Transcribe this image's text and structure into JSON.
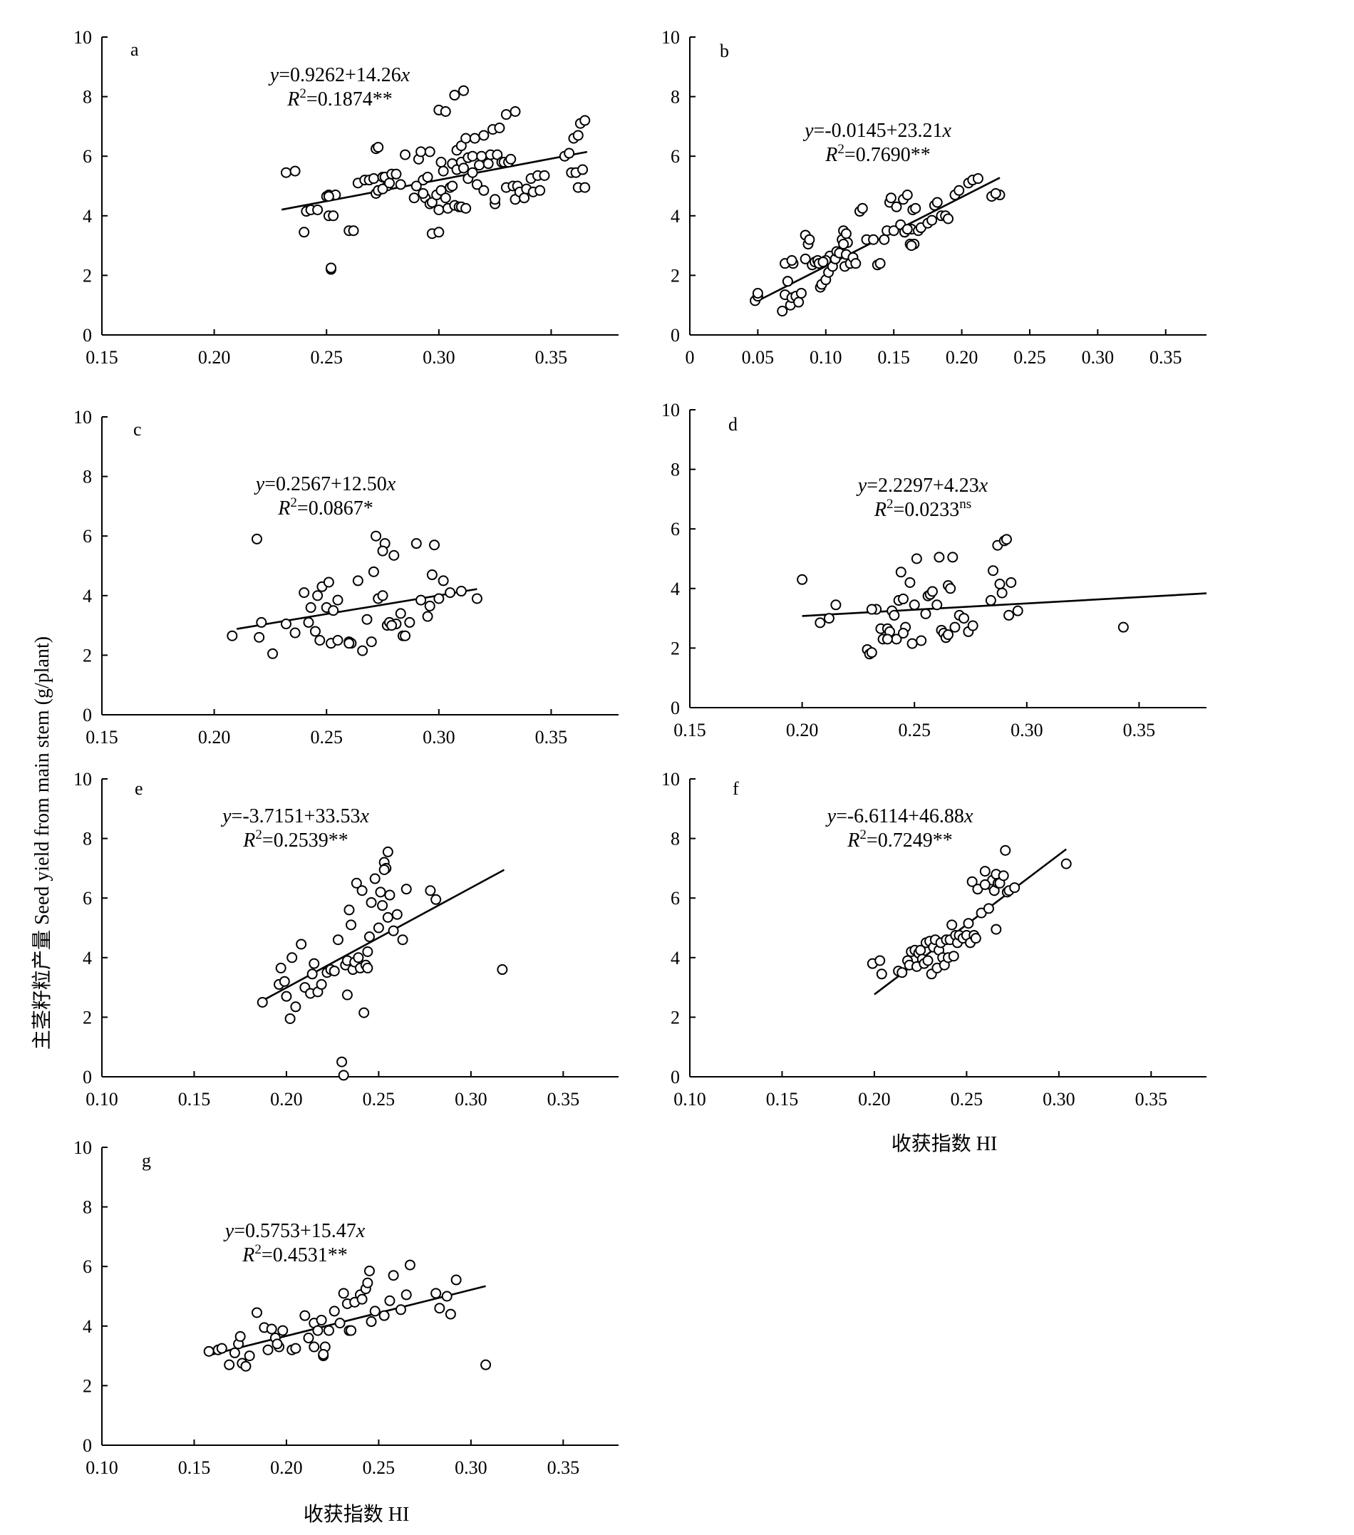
{
  "figure": {
    "ylabel": "主茎籽粒产量 Seed yield from main stem (g/plant)",
    "xlabel_upper": "收获指数 HI",
    "xlabel_lower": "收获指数 HI"
  },
  "chart_data": [
    {
      "type": "scatter",
      "letter": "a",
      "eq_line1": {
        "y": "y",
        "rest": "=0.9262+14.26",
        "x": "x"
      },
      "eq_line2": {
        "r": "R",
        "sup": "2",
        "rest": "=0.1874**"
      },
      "xlim": [
        0.15,
        0.38
      ],
      "ylim": [
        0,
        10
      ],
      "xticks": [
        "0.15",
        "0.20",
        "0.25",
        "0.30",
        "0.35"
      ],
      "yticks": [
        "0",
        "2",
        "4",
        "6",
        "8",
        "10"
      ],
      "fit": {
        "intercept": 0.9262,
        "slope": 14.26,
        "x_range": [
          0.23,
          0.366
        ]
      },
      "x": [
        0.232,
        0.236,
        0.24,
        0.241,
        0.243,
        0.246,
        0.25,
        0.251,
        0.251,
        0.252,
        0.253,
        0.252,
        0.254,
        0.251,
        0.26,
        0.262,
        0.264,
        0.267,
        0.269,
        0.271,
        0.272,
        0.273,
        0.275,
        0.276,
        0.277,
        0.279,
        0.281,
        0.272,
        0.273,
        0.275,
        0.278,
        0.283,
        0.285,
        0.289,
        0.291,
        0.292,
        0.293,
        0.294,
        0.295,
        0.296,
        0.296,
        0.297,
        0.299,
        0.3,
        0.301,
        0.301,
        0.302,
        0.303,
        0.304,
        0.305,
        0.306,
        0.306,
        0.307,
        0.308,
        0.308,
        0.309,
        0.31,
        0.31,
        0.311,
        0.312,
        0.313,
        0.313,
        0.315,
        0.315,
        0.316,
        0.317,
        0.318,
        0.319,
        0.32,
        0.322,
        0.323,
        0.324,
        0.325,
        0.326,
        0.327,
        0.328,
        0.329,
        0.33,
        0.331,
        0.332,
        0.333,
        0.334,
        0.335,
        0.336,
        0.338,
        0.339,
        0.341,
        0.342,
        0.344,
        0.345,
        0.347,
        0.307,
        0.311,
        0.297,
        0.3,
        0.29,
        0.293,
        0.3,
        0.303,
        0.31,
        0.312,
        0.32,
        0.325,
        0.33,
        0.334,
        0.356,
        0.358,
        0.36,
        0.362,
        0.363,
        0.365,
        0.359,
        0.361,
        0.362,
        0.365,
        0.364
      ],
      "y": [
        5.45,
        5.5,
        3.45,
        4.15,
        4.2,
        4.2,
        4.65,
        4.7,
        4.0,
        2.2,
        4.0,
        2.25,
        4.7,
        4.65,
        3.5,
        3.5,
        5.1,
        5.2,
        5.2,
        5.25,
        4.75,
        4.85,
        5.3,
        5.3,
        5.0,
        5.4,
        5.4,
        6.25,
        6.3,
        4.9,
        5.1,
        5.05,
        6.05,
        4.6,
        5.9,
        6.15,
        5.2,
        4.6,
        5.3,
        4.4,
        6.15,
        4.45,
        4.7,
        4.2,
        4.85,
        5.8,
        5.5,
        4.6,
        4.25,
        4.95,
        5.0,
        5.75,
        4.35,
        6.2,
        5.55,
        4.3,
        5.8,
        6.35,
        5.6,
        6.6,
        5.95,
        5.25,
        6.0,
        5.45,
        6.6,
        5.05,
        5.7,
        6.0,
        4.85,
        5.75,
        6.05,
        6.9,
        4.4,
        6.05,
        6.95,
        5.8,
        5.8,
        4.95,
        5.8,
        5.9,
        5.0,
        4.55,
        5.0,
        4.8,
        4.6,
        4.9,
        5.25,
        4.8,
        5.35,
        4.85,
        5.35,
        8.05,
        8.2,
        3.4,
        3.45,
        5.0,
        4.75,
        7.55,
        7.5,
        4.3,
        4.25,
        6.7,
        4.55,
        7.4,
        7.5,
        6.0,
        6.1,
        6.6,
        6.7,
        7.1,
        7.2,
        5.45,
        5.45,
        4.95,
        4.95,
        5.55
      ]
    },
    {
      "type": "scatter",
      "letter": "b",
      "eq_line1": {
        "y": "y",
        "rest": "=-0.0145+23.21",
        "x": "x"
      },
      "eq_line2": {
        "r": "R",
        "sup": "2",
        "rest": "=0.7690**"
      },
      "xlim": [
        0,
        0.38
      ],
      "ylim": [
        0,
        10
      ],
      "xticks": [
        "0",
        "0.05",
        "0.10",
        "0.15",
        "0.20",
        "0.25",
        "0.30",
        "0.35"
      ],
      "yticks": [
        "0",
        "2",
        "4",
        "6",
        "8",
        "10"
      ],
      "fit": {
        "intercept": -0.0145,
        "slope": 23.21,
        "x_range": [
          0.05,
          0.228
        ]
      },
      "x": [
        0.048,
        0.05,
        0.05,
        0.068,
        0.07,
        0.072,
        0.074,
        0.075,
        0.076,
        0.078,
        0.08,
        0.082,
        0.07,
        0.072,
        0.075,
        0.085,
        0.087,
        0.085,
        0.088,
        0.09,
        0.092,
        0.094,
        0.095,
        0.096,
        0.097,
        0.1,
        0.102,
        0.103,
        0.105,
        0.107,
        0.108,
        0.11,
        0.112,
        0.113,
        0.114,
        0.115,
        0.116,
        0.118,
        0.12,
        0.122,
        0.125,
        0.127,
        0.13,
        0.135,
        0.138,
        0.14,
        0.143,
        0.145,
        0.147,
        0.148,
        0.15,
        0.152,
        0.155,
        0.157,
        0.158,
        0.16,
        0.162,
        0.163,
        0.164,
        0.166,
        0.168,
        0.17,
        0.175,
        0.178,
        0.18,
        0.182,
        0.185,
        0.188,
        0.19,
        0.195,
        0.198,
        0.205,
        0.208,
        0.212,
        0.222,
        0.228,
        0.225,
        0.113,
        0.115,
        0.1,
        0.098,
        0.165,
        0.163,
        0.158,
        0.16
      ],
      "y": [
        1.15,
        1.3,
        1.4,
        0.8,
        1.35,
        1.8,
        1.0,
        1.25,
        2.4,
        1.3,
        1.1,
        1.4,
        2.4,
        1.8,
        2.5,
        2.55,
        3.05,
        3.35,
        3.2,
        2.35,
        2.45,
        2.5,
        2.4,
        1.6,
        1.7,
        1.85,
        2.1,
        2.65,
        2.3,
        2.55,
        2.8,
        2.75,
        3.2,
        3.5,
        2.3,
        2.7,
        3.1,
        2.4,
        2.6,
        2.4,
        4.15,
        4.25,
        3.2,
        3.2,
        2.35,
        2.4,
        3.2,
        3.5,
        4.45,
        4.6,
        3.5,
        4.3,
        3.7,
        4.55,
        3.45,
        4.7,
        3.05,
        3.55,
        4.2,
        4.25,
        3.5,
        3.6,
        3.75,
        3.85,
        4.35,
        4.45,
        4.0,
        4.0,
        3.9,
        4.7,
        4.85,
        5.1,
        5.2,
        5.25,
        4.65,
        4.7,
        4.75,
        3.05,
        3.4,
        2.5,
        2.45,
        3.05,
        3.0,
        3.45,
        3.55
      ]
    },
    {
      "type": "scatter",
      "letter": "c",
      "eq_line1": {
        "y": "y",
        "rest": "=0.2567+12.50",
        "x": "x"
      },
      "eq_line2": {
        "r": "R",
        "sup": "2",
        "rest": "=0.0867*"
      },
      "xlim": [
        0.15,
        0.38
      ],
      "ylim": [
        0,
        10
      ],
      "xticks": [
        "0.15",
        "0.20",
        "0.25",
        "0.30",
        "0.35"
      ],
      "yticks": [
        "0",
        "2",
        "4",
        "6",
        "8",
        "10"
      ],
      "fit": {
        "intercept": 0.2567,
        "slope": 12.5,
        "x_range": [
          0.21,
          0.317
        ]
      },
      "x": [
        0.208,
        0.219,
        0.22,
        0.221,
        0.226,
        0.232,
        0.236,
        0.24,
        0.242,
        0.243,
        0.245,
        0.246,
        0.247,
        0.248,
        0.25,
        0.251,
        0.252,
        0.253,
        0.255,
        0.255,
        0.26,
        0.261,
        0.264,
        0.266,
        0.268,
        0.27,
        0.271,
        0.272,
        0.273,
        0.275,
        0.276,
        0.277,
        0.278,
        0.28,
        0.281,
        0.283,
        0.284,
        0.285,
        0.287,
        0.29,
        0.292,
        0.295,
        0.296,
        0.297,
        0.298,
        0.3,
        0.302,
        0.305,
        0.31,
        0.317,
        0.275,
        0.279,
        0.26
      ],
      "y": [
        2.65,
        5.9,
        2.6,
        3.1,
        2.05,
        3.05,
        2.75,
        4.1,
        3.1,
        3.6,
        2.8,
        4.0,
        2.5,
        4.3,
        3.6,
        4.45,
        2.4,
        3.5,
        3.85,
        2.5,
        2.45,
        2.4,
        4.5,
        2.15,
        3.2,
        2.45,
        4.8,
        6.0,
        3.9,
        4.0,
        5.75,
        3.0,
        3.1,
        5.35,
        3.05,
        3.4,
        2.65,
        2.65,
        3.1,
        5.75,
        3.85,
        3.3,
        3.65,
        4.7,
        5.7,
        3.9,
        4.5,
        4.1,
        4.15,
        3.9,
        5.5,
        3.0,
        2.4
      ]
    },
    {
      "type": "scatter",
      "letter": "d",
      "eq_line1": {
        "y": "y",
        "rest": "=2.2297+4.23",
        "x": "x"
      },
      "eq_line2": {
        "r": "R",
        "sup": "2",
        "rest": "=0.0233",
        "sup2": "ns"
      },
      "xlim": [
        0.15,
        0.38
      ],
      "ylim": [
        0,
        10
      ],
      "xticks": [
        "0.15",
        "0.20",
        "0.25",
        "0.30",
        "0.35"
      ],
      "yticks": [
        "0",
        "2",
        "4",
        "6",
        "8",
        "10"
      ],
      "fit": {
        "intercept": 2.2297,
        "slope": 4.23,
        "x_range": [
          0.2,
          0.38
        ]
      },
      "x": [
        0.2,
        0.208,
        0.212,
        0.215,
        0.229,
        0.23,
        0.231,
        0.233,
        0.235,
        0.236,
        0.238,
        0.239,
        0.24,
        0.241,
        0.242,
        0.243,
        0.244,
        0.245,
        0.246,
        0.248,
        0.249,
        0.25,
        0.251,
        0.253,
        0.255,
        0.256,
        0.257,
        0.258,
        0.26,
        0.261,
        0.262,
        0.263,
        0.264,
        0.265,
        0.266,
        0.267,
        0.268,
        0.27,
        0.272,
        0.274,
        0.276,
        0.284,
        0.285,
        0.287,
        0.288,
        0.289,
        0.29,
        0.291,
        0.292,
        0.293,
        0.296,
        0.343,
        0.231,
        0.238,
        0.245,
        0.265
      ],
      "y": [
        4.3,
        2.85,
        3.0,
        3.45,
        1.95,
        1.8,
        1.85,
        3.3,
        2.65,
        2.3,
        2.65,
        2.55,
        3.25,
        3.1,
        2.3,
        3.6,
        4.55,
        3.65,
        2.7,
        4.2,
        2.15,
        3.45,
        5.0,
        2.25,
        3.15,
        3.75,
        3.8,
        3.9,
        3.45,
        5.05,
        2.6,
        2.5,
        2.35,
        4.1,
        4.0,
        5.05,
        2.7,
        3.1,
        3.0,
        2.55,
        2.75,
        3.6,
        4.6,
        5.45,
        4.15,
        3.85,
        5.6,
        5.65,
        3.1,
        4.2,
        3.25,
        2.7,
        3.3,
        2.3,
        2.5,
        2.45
      ]
    },
    {
      "type": "scatter",
      "letter": "e",
      "eq_line1": {
        "y": "y",
        "rest": "=-3.7151+33.53",
        "x": "x"
      },
      "eq_line2": {
        "r": "R",
        "sup": "2",
        "rest": "=0.2539**"
      },
      "xlim": [
        0.1,
        0.38
      ],
      "ylim": [
        0,
        10
      ],
      "xticks": [
        "0.10",
        "0.15",
        "0.20",
        "0.25",
        "0.30",
        "0.35"
      ],
      "yticks": [
        "0",
        "2",
        "4",
        "6",
        "8",
        "10"
      ],
      "fit": {
        "intercept": -3.7151,
        "slope": 33.53,
        "x_range": [
          0.188,
          0.318
        ]
      },
      "x": [
        0.187,
        0.196,
        0.197,
        0.199,
        0.2,
        0.202,
        0.203,
        0.205,
        0.208,
        0.21,
        0.213,
        0.214,
        0.215,
        0.217,
        0.219,
        0.222,
        0.224,
        0.226,
        0.228,
        0.23,
        0.232,
        0.233,
        0.234,
        0.235,
        0.236,
        0.237,
        0.238,
        0.239,
        0.24,
        0.241,
        0.242,
        0.243,
        0.244,
        0.245,
        0.246,
        0.248,
        0.25,
        0.251,
        0.252,
        0.253,
        0.254,
        0.255,
        0.256,
        0.258,
        0.26,
        0.263,
        0.265,
        0.278,
        0.281,
        0.317,
        0.231,
        0.244,
        0.233,
        0.253,
        0.255
      ],
      "y": [
        2.5,
        3.1,
        3.65,
        3.2,
        2.7,
        1.95,
        4.0,
        2.35,
        4.45,
        3.0,
        2.8,
        3.45,
        3.8,
        2.85,
        3.1,
        3.5,
        3.6,
        3.55,
        4.6,
        0.5,
        3.75,
        3.9,
        5.6,
        5.1,
        3.6,
        3.85,
        6.5,
        4.0,
        3.65,
        6.25,
        2.15,
        3.75,
        3.65,
        4.7,
        5.85,
        6.65,
        5.0,
        6.2,
        5.75,
        7.2,
        7.0,
        7.55,
        6.1,
        4.9,
        5.45,
        4.6,
        6.3,
        6.25,
        5.95,
        3.6,
        0.05,
        4.2,
        2.75,
        6.95,
        5.35
      ]
    },
    {
      "type": "scatter",
      "letter": "f",
      "eq_line1": {
        "y": "y",
        "rest": "=-6.6114+46.88",
        "x": "x"
      },
      "eq_line2": {
        "r": "R",
        "sup": "2",
        "rest": "=0.7249**"
      },
      "xlim": [
        0.1,
        0.38
      ],
      "ylim": [
        0,
        10
      ],
      "xticks": [
        "0.10",
        "0.15",
        "0.20",
        "0.25",
        "0.30",
        "0.35"
      ],
      "yticks": [
        "0",
        "2",
        "4",
        "6",
        "8",
        "10"
      ],
      "fit": {
        "intercept": -6.6114,
        "slope": 46.88,
        "x_range": [
          0.2,
          0.304
        ]
      },
      "x": [
        0.199,
        0.203,
        0.204,
        0.213,
        0.215,
        0.218,
        0.219,
        0.22,
        0.222,
        0.223,
        0.224,
        0.225,
        0.226,
        0.227,
        0.228,
        0.229,
        0.23,
        0.231,
        0.232,
        0.233,
        0.234,
        0.235,
        0.236,
        0.237,
        0.238,
        0.239,
        0.24,
        0.241,
        0.242,
        0.243,
        0.244,
        0.245,
        0.246,
        0.248,
        0.25,
        0.251,
        0.252,
        0.253,
        0.254,
        0.255,
        0.256,
        0.258,
        0.26,
        0.262,
        0.263,
        0.264,
        0.265,
        0.266,
        0.267,
        0.268,
        0.27,
        0.271,
        0.272,
        0.273,
        0.276,
        0.304,
        0.266,
        0.26
      ],
      "y": [
        3.8,
        3.9,
        3.45,
        3.55,
        3.5,
        3.9,
        3.75,
        4.2,
        4.25,
        3.7,
        4.15,
        4.25,
        3.95,
        3.8,
        4.5,
        3.9,
        4.55,
        3.45,
        4.35,
        4.6,
        3.65,
        4.25,
        4.5,
        4.0,
        3.75,
        4.6,
        4.0,
        4.6,
        5.1,
        4.05,
        4.75,
        4.5,
        4.75,
        4.65,
        4.75,
        5.15,
        4.5,
        6.55,
        4.75,
        4.65,
        6.3,
        5.5,
        6.9,
        5.65,
        6.45,
        6.6,
        6.25,
        6.8,
        6.5,
        6.5,
        6.75,
        7.6,
        6.2,
        6.25,
        6.35,
        7.15,
        4.95,
        6.45
      ]
    },
    {
      "type": "scatter",
      "letter": "g",
      "eq_line1": {
        "y": "y",
        "rest": "=0.5753+15.47",
        "x": "x"
      },
      "eq_line2": {
        "r": "R",
        "sup": "2",
        "rest": "=0.4531**"
      },
      "xlim": [
        0.1,
        0.38
      ],
      "ylim": [
        0,
        10
      ],
      "xticks": [
        "0.10",
        "0.15",
        "0.20",
        "0.25",
        "0.30",
        "0.35"
      ],
      "yticks": [
        "0",
        "2",
        "4",
        "6",
        "8",
        "10"
      ],
      "fit": {
        "intercept": 0.5753,
        "slope": 15.47,
        "x_range": [
          0.16,
          0.308
        ]
      },
      "x": [
        0.158,
        0.163,
        0.165,
        0.169,
        0.172,
        0.174,
        0.176,
        0.178,
        0.18,
        0.184,
        0.188,
        0.19,
        0.192,
        0.194,
        0.196,
        0.198,
        0.203,
        0.205,
        0.21,
        0.212,
        0.215,
        0.217,
        0.219,
        0.22,
        0.221,
        0.223,
        0.226,
        0.229,
        0.231,
        0.233,
        0.234,
        0.235,
        0.237,
        0.24,
        0.241,
        0.243,
        0.244,
        0.245,
        0.246,
        0.248,
        0.253,
        0.256,
        0.258,
        0.262,
        0.265,
        0.267,
        0.281,
        0.283,
        0.287,
        0.289,
        0.292,
        0.308,
        0.175,
        0.195,
        0.215,
        0.22
      ],
      "y": [
        3.15,
        3.2,
        3.25,
        2.7,
        3.1,
        3.4,
        2.75,
        2.65,
        3.0,
        4.45,
        3.95,
        3.2,
        3.9,
        3.6,
        3.3,
        3.85,
        3.2,
        3.25,
        4.35,
        3.6,
        4.1,
        3.85,
        4.2,
        3.0,
        3.3,
        3.85,
        4.5,
        4.1,
        5.1,
        4.75,
        3.85,
        3.85,
        4.8,
        5.05,
        4.9,
        5.25,
        5.45,
        5.85,
        4.15,
        4.5,
        4.35,
        4.85,
        5.7,
        4.55,
        5.05,
        6.05,
        5.1,
        4.6,
        5.0,
        4.4,
        5.55,
        2.7,
        3.65,
        3.4,
        3.3,
        3.05
      ]
    }
  ]
}
